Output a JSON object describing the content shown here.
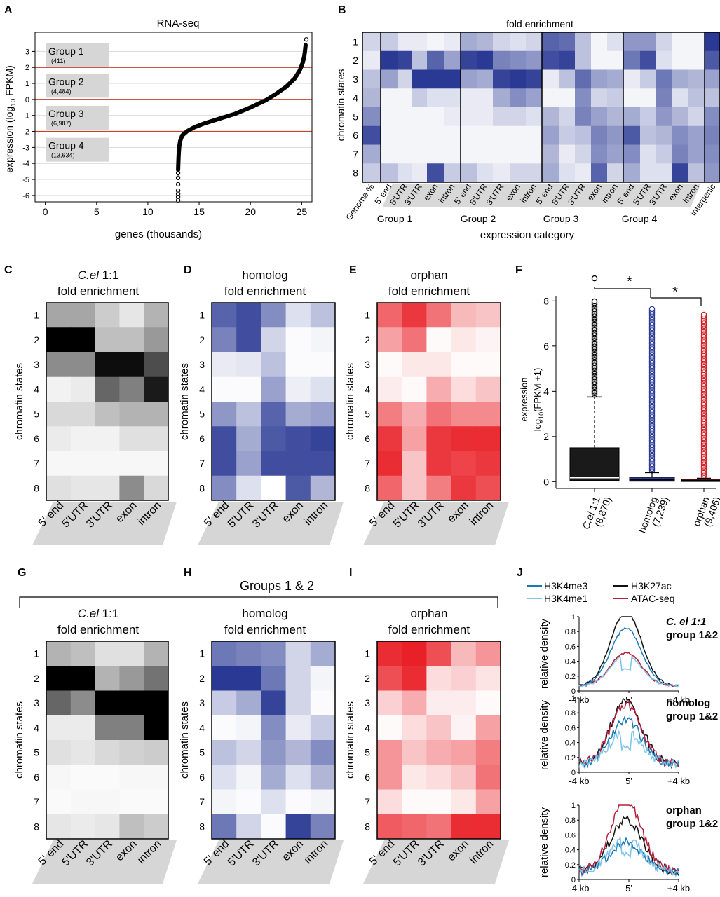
{
  "panels": {
    "A": "A",
    "B": "B",
    "C": "C",
    "D": "D",
    "E": "E",
    "F": "F",
    "G": "G",
    "H": "H",
    "I": "I",
    "J": "J"
  },
  "colors": {
    "gray": "#000000",
    "blue": "#1f2f8e",
    "red": "#e8141c",
    "homolog_text": "#2a3b96",
    "orphan_text": "#d42027",
    "groupline": "#c8402a"
  },
  "common": {
    "states": [
      "1",
      "2",
      "3",
      "4",
      "5",
      "6",
      "7",
      "8"
    ],
    "features": [
      "5' end",
      "5'UTR",
      "3'UTR",
      "exon",
      "intron"
    ],
    "chromatin_label": "chromatin states",
    "fold_enrichment": "fold enrichment"
  },
  "chart_data": [
    {
      "id": "A",
      "type": "scatter",
      "title": "RNA-seq",
      "xlabel": "genes (thousands)",
      "ylabel_main": "expression (log",
      "ylabel_sub": "10",
      "ylabel_end": " FPKM)",
      "xlim": [
        -1,
        26
      ],
      "ylim": [
        -6.4,
        4.2
      ],
      "xticks": [
        0,
        5,
        10,
        15,
        20,
        25
      ],
      "yticks": [
        -6,
        -5,
        -4,
        -3,
        -2,
        -1,
        0,
        1,
        2,
        3
      ],
      "thresholds": [
        2,
        0,
        -2
      ],
      "groups": [
        {
          "name": "Group 1",
          "count": "(411)",
          "y": 2.8
        },
        {
          "name": "Group 2",
          "count": "(4,484)",
          "y": 0.9
        },
        {
          "name": "Group 3",
          "count": "(6,987)",
          "y": -1.1
        },
        {
          "name": "Group 4",
          "count": "(13,634)",
          "y": -3.1
        }
      ],
      "curve": [
        [
          12.95,
          -4.4
        ],
        [
          12.97,
          -4.0
        ],
        [
          13.0,
          -3.5
        ],
        [
          13.05,
          -3.0
        ],
        [
          13.15,
          -2.6
        ],
        [
          13.35,
          -2.25
        ],
        [
          13.8,
          -2.0
        ],
        [
          14.5,
          -1.75
        ],
        [
          15.5,
          -1.5
        ],
        [
          17,
          -1.2
        ],
        [
          18.5,
          -0.9
        ],
        [
          20,
          -0.5
        ],
        [
          21.5,
          -0.05
        ],
        [
          22.5,
          0.35
        ],
        [
          23.5,
          0.8
        ],
        [
          24.3,
          1.3
        ],
        [
          24.8,
          1.8
        ],
        [
          25.1,
          2.3
        ],
        [
          25.25,
          2.7
        ],
        [
          25.33,
          3.1
        ],
        [
          25.38,
          3.4
        ]
      ],
      "outliers": [
        [
          12.95,
          -4.6
        ],
        [
          12.95,
          -4.9
        ],
        [
          12.95,
          -5.3
        ],
        [
          12.95,
          -5.7
        ],
        [
          12.95,
          -5.9
        ],
        [
          12.95,
          -6.1
        ],
        [
          12.95,
          -6.3
        ],
        [
          25.45,
          3.75
        ]
      ]
    },
    {
      "id": "B",
      "type": "heatmap",
      "title": "fold enrichment",
      "ylabel": "chromatin states",
      "xlabel": "expression category",
      "rows": [
        "1",
        "2",
        "3",
        "4",
        "5",
        "6",
        "7",
        "8"
      ],
      "columns": [
        "Genome %",
        "5' end",
        "5'UTR",
        "3'UTR",
        "exon",
        "intron",
        "5' end",
        "5'UTR",
        "3'UTR",
        "exon",
        "intron",
        "5' end",
        "5'UTR",
        "3'UTR",
        "exon",
        "intron",
        "5' end",
        "5'UTR",
        "3'UTR",
        "exon",
        "intron",
        "intergenic"
      ],
      "groups": [
        "Group 1",
        "Group 2",
        "Group 3",
        "Group 4"
      ],
      "values": [
        [
          0.2,
          0.25,
          0.1,
          0.1,
          0.05,
          0.1,
          0.4,
          0.35,
          0.2,
          0.15,
          0.2,
          0.75,
          0.7,
          0.3,
          0.05,
          0.15,
          0.5,
          0.5,
          0.2,
          0.05,
          0.05,
          0.95
        ],
        [
          0.1,
          0.95,
          0.9,
          0.3,
          0.75,
          0.45,
          0.9,
          0.95,
          0.6,
          0.55,
          0.5,
          0.85,
          0.9,
          0.3,
          0.05,
          0.05,
          0.65,
          0.85,
          0.15,
          0.05,
          0.05,
          0.8
        ],
        [
          0.3,
          0.45,
          0.2,
          0.95,
          0.95,
          0.95,
          0.45,
          0.4,
          0.9,
          0.95,
          0.9,
          0.1,
          0.3,
          0.7,
          0.45,
          0.4,
          0.1,
          0.25,
          0.65,
          0.4,
          0.35,
          0.45
        ],
        [
          0.35,
          0.05,
          0.05,
          0.25,
          0.15,
          0.15,
          0.1,
          0.1,
          0.4,
          0.55,
          0.45,
          0.05,
          0.05,
          0.55,
          0.2,
          0.25,
          0.05,
          0.05,
          0.6,
          0.15,
          0.3,
          0.3
        ],
        [
          0.55,
          0.05,
          0.05,
          0.05,
          0.05,
          0.1,
          0.1,
          0.1,
          0.2,
          0.2,
          0.15,
          0.35,
          0.2,
          0.6,
          0.45,
          0.35,
          0.4,
          0.25,
          0.5,
          0.35,
          0.2,
          0.55
        ],
        [
          0.85,
          0.05,
          0.05,
          0.05,
          0.05,
          0.05,
          0.05,
          0.05,
          0.05,
          0.05,
          0.05,
          0.45,
          0.25,
          0.3,
          0.6,
          0.5,
          0.8,
          0.3,
          0.35,
          0.55,
          0.45,
          0.6
        ],
        [
          0.4,
          0.05,
          0.05,
          0.05,
          0.05,
          0.05,
          0.05,
          0.05,
          0.05,
          0.05,
          0.05,
          0.35,
          0.1,
          0.2,
          0.55,
          0.45,
          0.55,
          0.15,
          0.25,
          0.6,
          0.45,
          0.55
        ],
        [
          0.25,
          0.3,
          0.15,
          0.1,
          0.85,
          0.25,
          0.3,
          0.15,
          0.1,
          0.2,
          0.2,
          0.4,
          0.15,
          0.1,
          0.75,
          0.2,
          0.4,
          0.15,
          0.15,
          0.9,
          0.3,
          0.5
        ]
      ]
    },
    {
      "id": "C",
      "type": "heatmap",
      "color": "gray",
      "title_italic": "C.el",
      "title_rest": " 1:1",
      "subtitle": "fold enrichment",
      "values": [
        [
          0.35,
          0.35,
          0.2,
          0.1,
          0.3
        ],
        [
          1.0,
          1.0,
          0.25,
          0.25,
          0.4
        ],
        [
          0.45,
          0.45,
          0.95,
          0.95,
          0.7
        ],
        [
          0.05,
          0.08,
          0.6,
          0.5,
          0.9
        ],
        [
          0.15,
          0.15,
          0.25,
          0.3,
          0.3
        ],
        [
          0.08,
          0.05,
          0.05,
          0.12,
          0.12
        ],
        [
          0.03,
          0.03,
          0.03,
          0.03,
          0.03
        ],
        [
          0.12,
          0.1,
          0.1,
          0.45,
          0.15
        ]
      ]
    },
    {
      "id": "D",
      "type": "heatmap",
      "color": "blue",
      "title": "homolog",
      "subtitle": "fold enrichment",
      "values": [
        [
          0.75,
          0.85,
          0.55,
          0.15,
          0.3
        ],
        [
          0.6,
          0.85,
          0.2,
          0.02,
          0.05
        ],
        [
          0.1,
          0.12,
          0.3,
          0.02,
          0.02
        ],
        [
          0.02,
          0.02,
          0.45,
          0.08,
          0.15
        ],
        [
          0.5,
          0.3,
          0.75,
          0.4,
          0.45
        ],
        [
          0.85,
          0.4,
          0.8,
          0.85,
          0.9
        ],
        [
          0.85,
          0.45,
          0.85,
          0.85,
          0.85
        ],
        [
          0.55,
          0.15,
          0.0,
          0.8,
          0.35
        ]
      ]
    },
    {
      "id": "E",
      "type": "heatmap",
      "color": "red",
      "title": "orphan",
      "subtitle": "fold enrichment",
      "values": [
        [
          0.65,
          0.85,
          0.6,
          0.3,
          0.25
        ],
        [
          0.4,
          0.6,
          0.02,
          0.1,
          0.05
        ],
        [
          0.02,
          0.1,
          0.1,
          0.02,
          0.02
        ],
        [
          0.08,
          0.02,
          0.35,
          0.15,
          0.25
        ],
        [
          0.55,
          0.35,
          0.6,
          0.5,
          0.5
        ],
        [
          0.85,
          0.4,
          0.85,
          0.9,
          0.9
        ],
        [
          0.9,
          0.25,
          0.85,
          0.8,
          0.85
        ],
        [
          0.65,
          0.25,
          0.55,
          0.85,
          0.75
        ]
      ]
    },
    {
      "id": "F",
      "type": "box",
      "ylabel_top": "expression",
      "ylabel_log": "log",
      "ylabel_sub": "10",
      "ylabel_end": "(FPKM +1)",
      "ylim": [
        -0.3,
        8.6
      ],
      "yticks": [
        0,
        2,
        4,
        6,
        8
      ],
      "significance": [
        "*",
        "*"
      ],
      "categories": [
        {
          "label_italic": "C.el",
          "label_rest": " 1:1",
          "n": "(8,870)",
          "color": "#000000",
          "q1": 0.05,
          "median": 0.18,
          "q3": 1.5,
          "whisker_lo": 0.0,
          "whisker_hi": 3.75,
          "outlier_max": 8.0,
          "lone_outlier": 9.0
        },
        {
          "label": "homolog",
          "n": "(7,239)",
          "color": "#2a3b96",
          "q1": 0.02,
          "median": 0.08,
          "q3": 0.2,
          "whisker_lo": 0.0,
          "whisker_hi": 0.4,
          "outlier_max": 7.7
        },
        {
          "label": "orphan",
          "n": "(9,406)",
          "color": "#d42027",
          "q1": 0.01,
          "median": 0.04,
          "q3": 0.1,
          "whisker_lo": 0.0,
          "whisker_hi": 0.15,
          "outlier_max": 7.4
        }
      ]
    },
    {
      "id": "G",
      "type": "heatmap",
      "color": "gray",
      "title_italic": "C.el",
      "title_rest": " 1:1",
      "subtitle": "fold enrichment",
      "values": [
        [
          0.3,
          0.25,
          0.12,
          0.12,
          0.3
        ],
        [
          1.0,
          1.0,
          0.3,
          0.4,
          0.55
        ],
        [
          0.6,
          0.45,
          1.0,
          1.0,
          1.0
        ],
        [
          0.08,
          0.08,
          0.5,
          0.5,
          1.0
        ],
        [
          0.12,
          0.1,
          0.15,
          0.18,
          0.2
        ],
        [
          0.03,
          0.02,
          0.02,
          0.03,
          0.03
        ],
        [
          0.02,
          0.03,
          0.03,
          0.02,
          0.02
        ],
        [
          0.1,
          0.08,
          0.1,
          0.25,
          0.2
        ]
      ]
    },
    {
      "id": "H",
      "type": "heatmap",
      "color": "blue",
      "title": "homolog",
      "subtitle": "fold enrichment",
      "values": [
        [
          0.65,
          0.6,
          0.55,
          0.2,
          0.4
        ],
        [
          0.95,
          0.95,
          0.65,
          0.2,
          0.05
        ],
        [
          0.25,
          0.4,
          0.9,
          0.2,
          0.02
        ],
        [
          0.02,
          0.05,
          0.55,
          0.1,
          0.25
        ],
        [
          0.3,
          0.2,
          0.5,
          0.35,
          0.55
        ],
        [
          0.15,
          0.05,
          0.4,
          0.15,
          0.35
        ],
        [
          0.05,
          0.02,
          0.15,
          0.02,
          0.05
        ],
        [
          0.65,
          0.2,
          0.02,
          0.9,
          0.6
        ]
      ]
    },
    {
      "id": "I",
      "type": "heatmap",
      "color": "red",
      "title": "orphan",
      "subtitle": "fold enrichment",
      "values": [
        [
          0.9,
          0.95,
          0.75,
          0.3,
          0.45
        ],
        [
          0.75,
          0.9,
          0.15,
          0.2,
          0.12
        ],
        [
          0.2,
          0.35,
          0.08,
          0.08,
          0.02
        ],
        [
          0.02,
          0.15,
          0.25,
          0.05,
          0.4
        ],
        [
          0.45,
          0.25,
          0.35,
          0.4,
          0.55
        ],
        [
          0.45,
          0.1,
          0.15,
          0.25,
          0.6
        ],
        [
          0.15,
          0.02,
          0.02,
          0.1,
          0.4
        ],
        [
          0.7,
          0.65,
          0.6,
          0.9,
          0.9
        ]
      ]
    },
    {
      "id": "J",
      "type": "line",
      "ylabel": "relative density",
      "x_ticks": [
        "-4 kb",
        "5'",
        "+4 kb"
      ],
      "ylim": [
        0,
        1
      ],
      "yticks": [
        "0",
        "0.2",
        "0.4",
        "0.6",
        "0.8",
        "1"
      ],
      "legend": [
        {
          "name": "H3K4me3",
          "color": "#1a78b4"
        },
        {
          "name": "H3K27ac",
          "color": "#111111"
        },
        {
          "name": "H3K4me1",
          "color": "#7cc4ea"
        },
        {
          "name": "ATAC-seq",
          "color": "#b51f3a"
        }
      ],
      "subplots": [
        {
          "title": "C. el 1:1",
          "title_color": "#111111",
          "subtitle": "group 1&2",
          "peaks": {
            "H3K27ac": 1.0,
            "H3K4me3": 0.78,
            "ATAC-seq": 0.45,
            "H3K4me1": 0.42
          },
          "noisy": false
        },
        {
          "title": "homolog",
          "title_color": "#232a82",
          "subtitle": "group 1&2",
          "peaks": {
            "H3K27ac": 0.85,
            "H3K4me3": 0.6,
            "ATAC-seq": 0.8,
            "H3K4me1": 0.45
          },
          "noisy": true
        },
        {
          "title": "orphan",
          "title_color": "#b51f3a",
          "subtitle": "group 1&2",
          "peaks": {
            "H3K27ac": 0.7,
            "H3K4me3": 0.4,
            "ATAC-seq": 0.95,
            "H3K4me1": 0.45
          },
          "noisy": true
        }
      ]
    }
  ],
  "groups12": {
    "label": "Groups 1 & 2"
  }
}
